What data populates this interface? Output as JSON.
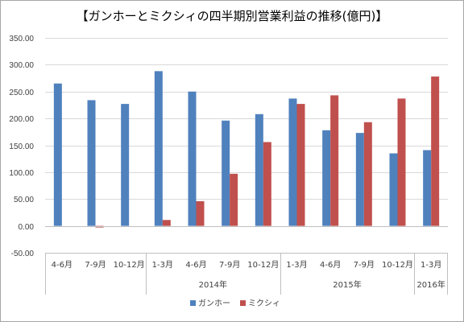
{
  "chart_data": {
    "type": "bar",
    "title": "【ガンホーとミクシィの四半期別営業利益の推移(億円)】",
    "ylim": [
      -50,
      350
    ],
    "yticks": [
      "-50.00",
      "0.00",
      "50.00",
      "100.00",
      "150.00",
      "200.00",
      "250.00",
      "300.00",
      "350.00"
    ],
    "grid": true,
    "legend_position": "bottom",
    "categories": [
      "4-6月",
      "7-9月",
      "10-12月",
      "1-3月",
      "4-6月",
      "7-9月",
      "10-12月",
      "1-3月",
      "4-6月",
      "7-9月",
      "10-12月",
      "1-3月"
    ],
    "groups": [
      {
        "label": "",
        "start": 0,
        "count": 3
      },
      {
        "label": "2014年",
        "start": 3,
        "count": 4
      },
      {
        "label": "2015年",
        "start": 7,
        "count": 4
      },
      {
        "label": "2016年",
        "start": 11,
        "count": 1
      }
    ],
    "series": [
      {
        "name": "ガンホー",
        "color": "#4f81bd",
        "values": [
          265,
          234,
          227,
          288,
          250,
          196,
          208,
          237,
          178,
          173,
          135,
          141
        ]
      },
      {
        "name": "ミクシィ",
        "color": "#c0504d",
        "values": [
          0,
          -3,
          0,
          11,
          46,
          97,
          156,
          227,
          243,
          193,
          237,
          278
        ]
      }
    ]
  }
}
